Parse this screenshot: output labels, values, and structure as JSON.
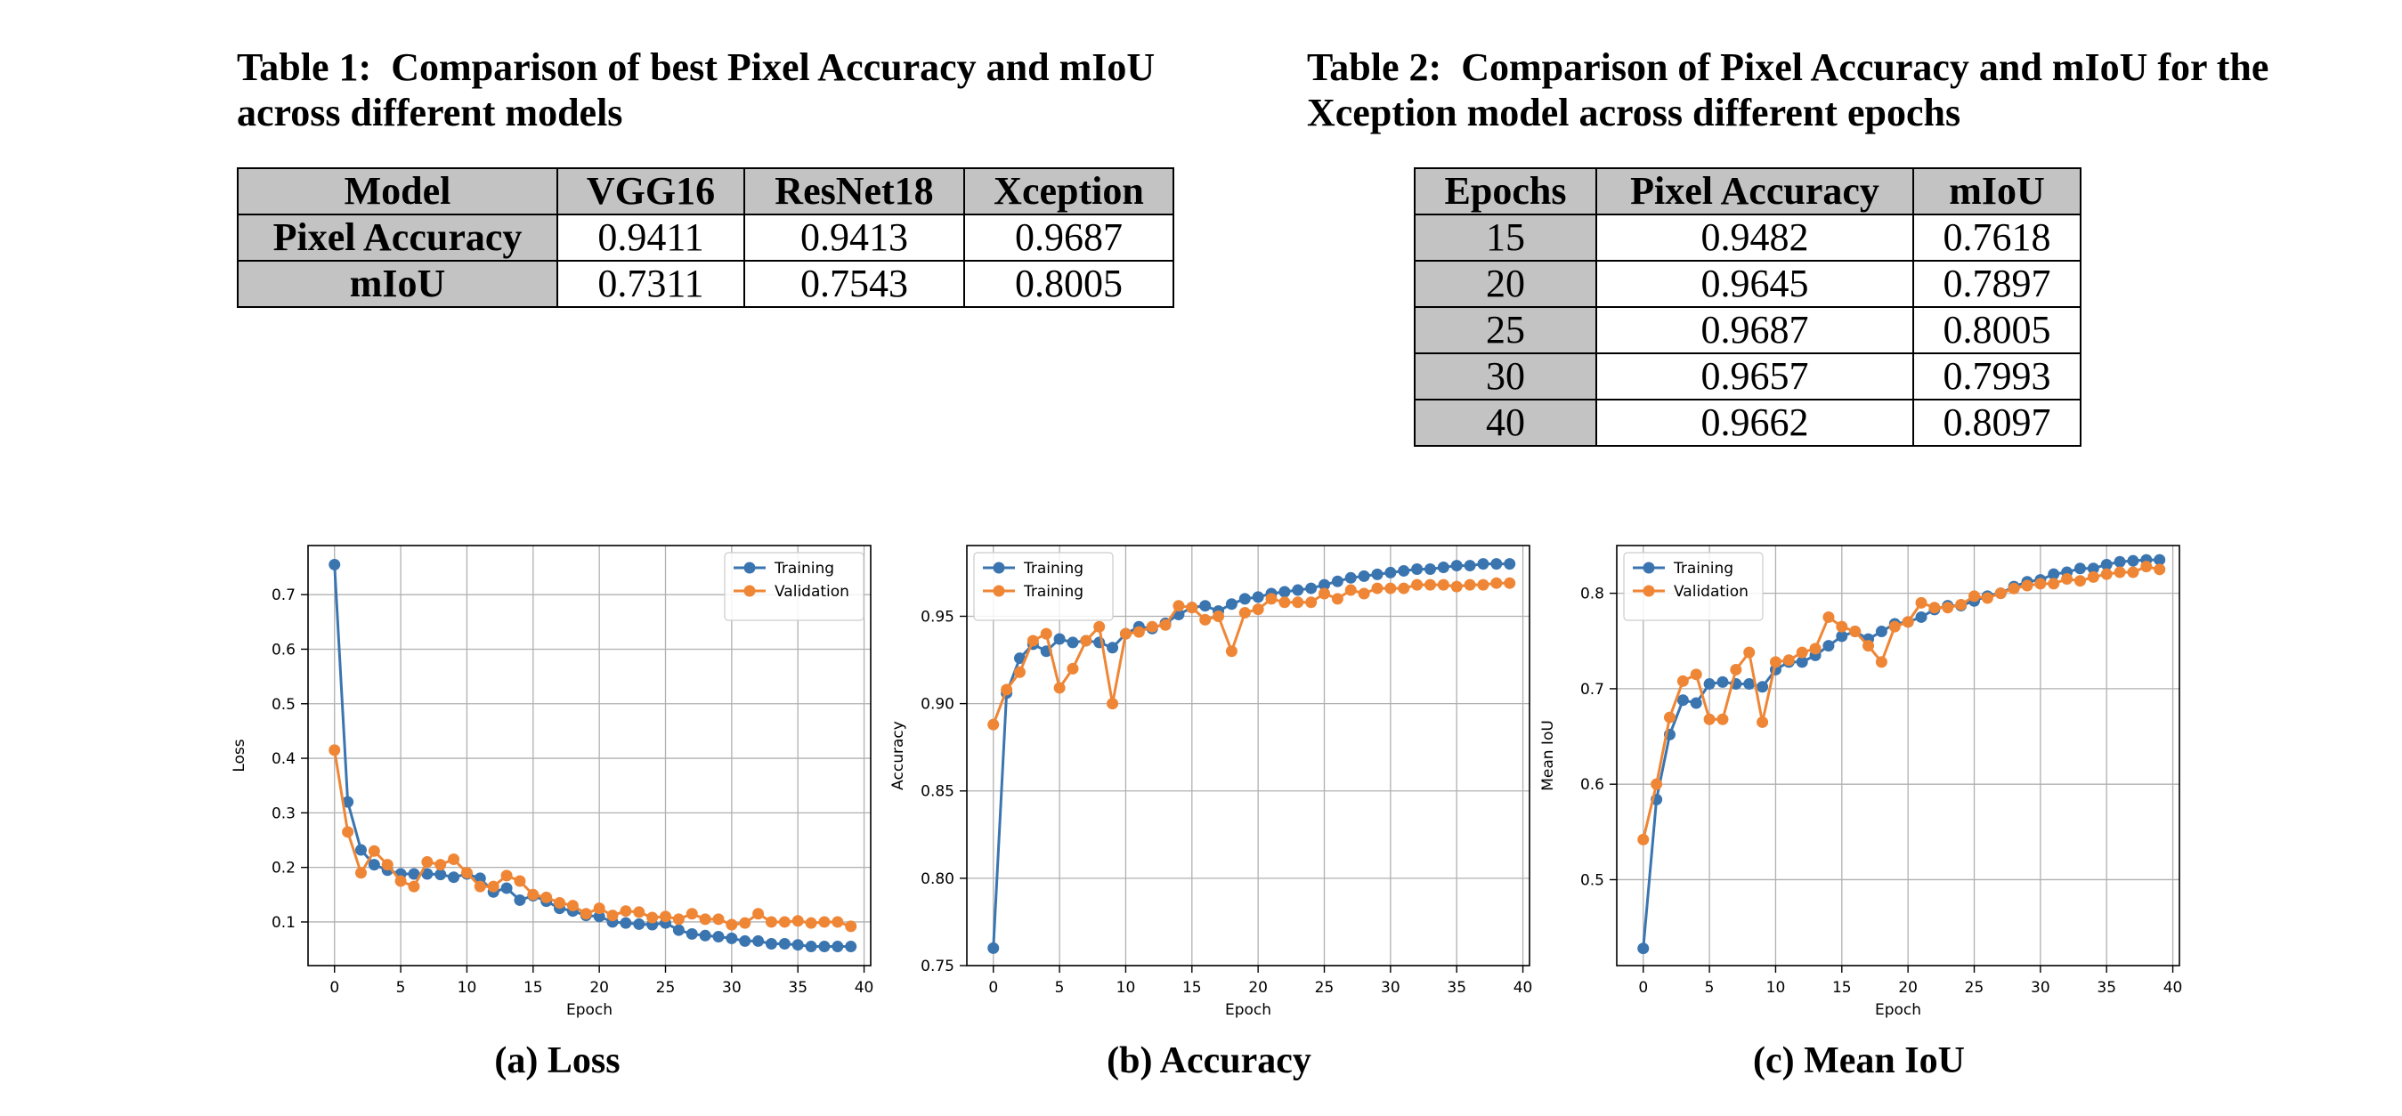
{
  "table1": {
    "caption_label": "Table 1:",
    "caption_text": "Comparison of best Pixel Accuracy and mIoU across different models",
    "headers": [
      "Model",
      "VGG16",
      "ResNet18",
      "Xception"
    ],
    "rows": [
      {
        "label": "Pixel Accuracy",
        "values": [
          "0.9411",
          "0.9413",
          "0.9687"
        ]
      },
      {
        "label": "mIoU",
        "values": [
          "0.7311",
          "0.7543",
          "0.8005"
        ]
      }
    ]
  },
  "table2": {
    "caption_label": "Table 2:",
    "caption_text": "Comparison of Pixel Accuracy and mIoU for the Xception model across different epochs",
    "headers": [
      "Epochs",
      "Pixel Accuracy",
      "mIoU"
    ],
    "rows": [
      [
        "15",
        "0.9482",
        "0.7618"
      ],
      [
        "20",
        "0.9645",
        "0.7897"
      ],
      [
        "25",
        "0.9687",
        "0.8005"
      ],
      [
        "30",
        "0.9657",
        "0.7993"
      ],
      [
        "40",
        "0.9662",
        "0.8097"
      ]
    ]
  },
  "colors": {
    "training": "#3a75b0",
    "validation": "#ef8636",
    "grid": "#b0b0b0"
  },
  "chart_data": [
    {
      "type": "line",
      "subcaption": "(a) Loss",
      "xlabel": "Epoch",
      "ylabel": "Loss",
      "xlim": [
        -2,
        40.5
      ],
      "ylim": [
        0.02,
        0.79
      ],
      "xticks": [
        0,
        5,
        10,
        15,
        20,
        25,
        30,
        35,
        40
      ],
      "yticks": [
        0.1,
        0.2,
        0.3,
        0.4,
        0.5,
        0.6,
        0.7
      ],
      "grid": true,
      "legend_position": "top-right",
      "series": [
        {
          "name": "Training",
          "color": "#3a75b0",
          "values": [
            0.755,
            0.32,
            0.232,
            0.205,
            0.195,
            0.188,
            0.188,
            0.188,
            0.187,
            0.182,
            0.188,
            0.18,
            0.155,
            0.162,
            0.14,
            0.148,
            0.138,
            0.125,
            0.12,
            0.112,
            0.11,
            0.1,
            0.098,
            0.096,
            0.095,
            0.098,
            0.085,
            0.078,
            0.075,
            0.073,
            0.07,
            0.065,
            0.065,
            0.06,
            0.06,
            0.058,
            0.055,
            0.055,
            0.055,
            0.055
          ]
        },
        {
          "name": "Validation",
          "color": "#ef8636",
          "values": [
            0.415,
            0.265,
            0.19,
            0.23,
            0.205,
            0.175,
            0.165,
            0.21,
            0.205,
            0.215,
            0.19,
            0.165,
            0.165,
            0.185,
            0.175,
            0.15,
            0.145,
            0.135,
            0.13,
            0.115,
            0.125,
            0.112,
            0.12,
            0.118,
            0.108,
            0.11,
            0.105,
            0.115,
            0.105,
            0.105,
            0.095,
            0.098,
            0.115,
            0.1,
            0.1,
            0.102,
            0.098,
            0.1,
            0.1,
            0.092
          ]
        }
      ]
    },
    {
      "type": "line",
      "subcaption": "(b) Accuracy",
      "xlabel": "Epoch",
      "ylabel": "Accuracy",
      "xlim": [
        -2,
        40.5
      ],
      "ylim": [
        0.75,
        0.9905
      ],
      "xticks": [
        0,
        5,
        10,
        15,
        20,
        25,
        30,
        35,
        40
      ],
      "yticks": [
        0.75,
        0.8,
        0.85,
        0.9,
        0.95
      ],
      "grid": true,
      "legend_position": "top-left",
      "series": [
        {
          "name": "Training",
          "color": "#3a75b0",
          "values": [
            0.76,
            0.906,
            0.926,
            0.934,
            0.93,
            0.937,
            0.935,
            0.936,
            0.935,
            0.932,
            0.94,
            0.944,
            0.943,
            0.946,
            0.951,
            0.955,
            0.956,
            0.953,
            0.957,
            0.96,
            0.961,
            0.963,
            0.964,
            0.965,
            0.966,
            0.968,
            0.97,
            0.972,
            0.973,
            0.974,
            0.975,
            0.976,
            0.977,
            0.977,
            0.978,
            0.979,
            0.979,
            0.98,
            0.98,
            0.98
          ]
        },
        {
          "name": "Training",
          "color": "#ef8636",
          "values": [
            0.888,
            0.908,
            0.918,
            0.936,
            0.94,
            0.909,
            0.92,
            0.936,
            0.944,
            0.9,
            0.94,
            0.941,
            0.944,
            0.945,
            0.956,
            0.955,
            0.948,
            0.95,
            0.93,
            0.952,
            0.954,
            0.96,
            0.958,
            0.958,
            0.958,
            0.963,
            0.96,
            0.965,
            0.963,
            0.966,
            0.966,
            0.966,
            0.968,
            0.968,
            0.968,
            0.967,
            0.968,
            0.968,
            0.969,
            0.969
          ]
        }
      ]
    },
    {
      "type": "line",
      "subcaption": "(c) Mean IoU",
      "xlabel": "Epoch",
      "ylabel": "Mean IoU",
      "xlim": [
        -2,
        40.5
      ],
      "ylim": [
        0.41,
        0.85
      ],
      "xticks": [
        0,
        5,
        10,
        15,
        20,
        25,
        30,
        35,
        40
      ],
      "yticks": [
        0.5,
        0.6,
        0.7,
        0.8
      ],
      "grid": true,
      "legend_position": "top-left",
      "series": [
        {
          "name": "Training",
          "color": "#3a75b0",
          "values": [
            0.428,
            0.584,
            0.652,
            0.688,
            0.685,
            0.705,
            0.707,
            0.705,
            0.705,
            0.702,
            0.72,
            0.728,
            0.728,
            0.735,
            0.745,
            0.755,
            0.76,
            0.752,
            0.76,
            0.768,
            0.77,
            0.775,
            0.783,
            0.787,
            0.787,
            0.792,
            0.797,
            0.8,
            0.807,
            0.812,
            0.814,
            0.82,
            0.822,
            0.826,
            0.826,
            0.83,
            0.833,
            0.834,
            0.835,
            0.835
          ]
        },
        {
          "name": "Validation",
          "color": "#ef8636",
          "values": [
            0.542,
            0.6,
            0.67,
            0.708,
            0.715,
            0.668,
            0.668,
            0.72,
            0.738,
            0.665,
            0.728,
            0.73,
            0.738,
            0.742,
            0.775,
            0.765,
            0.76,
            0.745,
            0.728,
            0.765,
            0.77,
            0.79,
            0.785,
            0.785,
            0.788,
            0.797,
            0.795,
            0.8,
            0.805,
            0.808,
            0.81,
            0.81,
            0.815,
            0.813,
            0.817,
            0.82,
            0.822,
            0.822,
            0.828,
            0.825
          ]
        }
      ]
    }
  ]
}
